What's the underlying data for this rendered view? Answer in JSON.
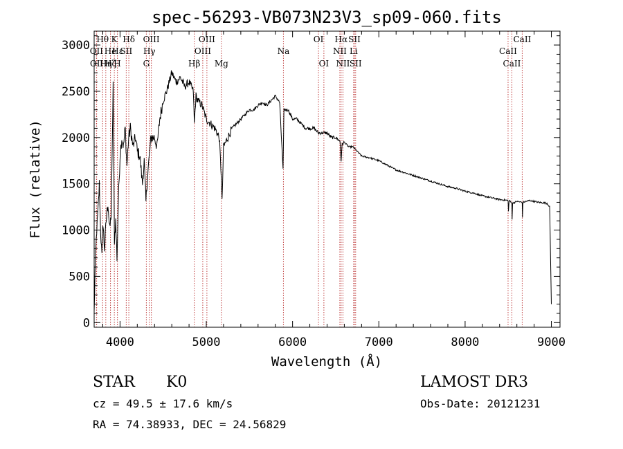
{
  "chart_data": {
    "type": "line",
    "title": "spec-56293-VB073N23V3_sp09-060.fits",
    "xlabel": "Wavelength (Å)",
    "ylabel": "Flux (relative)",
    "xlim": [
      3700,
      9100
    ],
    "ylim": [
      -50,
      3150
    ],
    "xticks": [
      4000,
      5000,
      6000,
      7000,
      8000,
      9000
    ],
    "xtick_labels": [
      "4000",
      "5000",
      "6000",
      "7000",
      "8000",
      "9000"
    ],
    "yticks": [
      0,
      500,
      1000,
      1500,
      2000,
      2500,
      3000
    ],
    "ytick_labels": [
      "0",
      "500",
      "1000",
      "1500",
      "2000",
      "2500",
      "3000"
    ],
    "grid": false,
    "series": [
      {
        "name": "spectrum",
        "anchors": [
          [
            3700,
            100
          ],
          [
            3715,
            700
          ],
          [
            3730,
            1000
          ],
          [
            3745,
            1200
          ],
          [
            3760,
            1500
          ],
          [
            3775,
            1000
          ],
          [
            3790,
            700
          ],
          [
            3800,
            1100
          ],
          [
            3820,
            800
          ],
          [
            3840,
            1100
          ],
          [
            3860,
            1300
          ],
          [
            3880,
            1000
          ],
          [
            3900,
            1200
          ],
          [
            3920,
            2600
          ],
          [
            3935,
            900
          ],
          [
            3950,
            1100
          ],
          [
            3965,
            700
          ],
          [
            3980,
            1300
          ],
          [
            4000,
            1800
          ],
          [
            4020,
            2000
          ],
          [
            4040,
            1900
          ],
          [
            4060,
            2100
          ],
          [
            4080,
            1700
          ],
          [
            4100,
            2000
          ],
          [
            4120,
            2100
          ],
          [
            4150,
            1900
          ],
          [
            4180,
            2000
          ],
          [
            4200,
            1850
          ],
          [
            4230,
            1800
          ],
          [
            4260,
            1500
          ],
          [
            4280,
            1750
          ],
          [
            4300,
            1300
          ],
          [
            4320,
            1600
          ],
          [
            4340,
            1800
          ],
          [
            4360,
            2000
          ],
          [
            4400,
            2000
          ],
          [
            4430,
            1900
          ],
          [
            4460,
            2200
          ],
          [
            4480,
            2300
          ],
          [
            4500,
            2400
          ],
          [
            4540,
            2500
          ],
          [
            4570,
            2600
          ],
          [
            4600,
            2700
          ],
          [
            4650,
            2600
          ],
          [
            4700,
            2650
          ],
          [
            4750,
            2550
          ],
          [
            4800,
            2600
          ],
          [
            4850,
            2500
          ],
          [
            4861,
            2150
          ],
          [
            4880,
            2450
          ],
          [
            4900,
            2400
          ],
          [
            4950,
            2350
          ],
          [
            5000,
            2200
          ],
          [
            5050,
            2150
          ],
          [
            5100,
            2100
          ],
          [
            5150,
            2000
          ],
          [
            5173,
            1600
          ],
          [
            5183,
            1300
          ],
          [
            5200,
            1900
          ],
          [
            5250,
            2000
          ],
          [
            5300,
            2100
          ],
          [
            5350,
            2150
          ],
          [
            5400,
            2200
          ],
          [
            5450,
            2250
          ],
          [
            5500,
            2300
          ],
          [
            5550,
            2300
          ],
          [
            5600,
            2350
          ],
          [
            5650,
            2380
          ],
          [
            5700,
            2350
          ],
          [
            5750,
            2400
          ],
          [
            5800,
            2450
          ],
          [
            5850,
            2380
          ],
          [
            5890,
            1650
          ],
          [
            5900,
            2300
          ],
          [
            5950,
            2300
          ],
          [
            6000,
            2200
          ],
          [
            6050,
            2200
          ],
          [
            6100,
            2150
          ],
          [
            6150,
            2100
          ],
          [
            6200,
            2100
          ],
          [
            6250,
            2100
          ],
          [
            6300,
            2050
          ],
          [
            6350,
            2050
          ],
          [
            6400,
            2050
          ],
          [
            6450,
            2000
          ],
          [
            6500,
            2000
          ],
          [
            6550,
            1960
          ],
          [
            6563,
            1750
          ],
          [
            6575,
            1930
          ],
          [
            6600,
            1950
          ],
          [
            6650,
            1900
          ],
          [
            6700,
            1900
          ],
          [
            6750,
            1850
          ],
          [
            6800,
            1800
          ],
          [
            6900,
            1780
          ],
          [
            7000,
            1750
          ],
          [
            7100,
            1700
          ],
          [
            7200,
            1650
          ],
          [
            7300,
            1620
          ],
          [
            7400,
            1590
          ],
          [
            7500,
            1560
          ],
          [
            7600,
            1530
          ],
          [
            7700,
            1500
          ],
          [
            7800,
            1470
          ],
          [
            7900,
            1450
          ],
          [
            8000,
            1420
          ],
          [
            8100,
            1400
          ],
          [
            8200,
            1370
          ],
          [
            8300,
            1350
          ],
          [
            8400,
            1330
          ],
          [
            8498,
            1320
          ],
          [
            8502,
            1200
          ],
          [
            8510,
            1320
          ],
          [
            8542,
            1290
          ],
          [
            8545,
            1120
          ],
          [
            8550,
            1290
          ],
          [
            8600,
            1310
          ],
          [
            8662,
            1300
          ],
          [
            8665,
            1130
          ],
          [
            8670,
            1300
          ],
          [
            8750,
            1320
          ],
          [
            8850,
            1300
          ],
          [
            8950,
            1290
          ],
          [
            8980,
            1250
          ],
          [
            9000,
            200
          ]
        ]
      }
    ],
    "lines": [
      {
        "label": "Hθ",
        "wl": 3798,
        "row": 1
      },
      {
        "label": "OII",
        "wl": 3727,
        "row": 2
      },
      {
        "label": "OII",
        "wl": 3729,
        "row": 3
      },
      {
        "label": "Hη",
        "wl": 3835,
        "row": 3
      },
      {
        "label": "Hζ",
        "wl": 3889,
        "row": 3
      },
      {
        "label": "He",
        "wl": 3889,
        "row": 2
      },
      {
        "label": "K",
        "wl": 3934,
        "row": 1
      },
      {
        "label": "H",
        "wl": 3969,
        "row": 3
      },
      {
        "label": "SII",
        "wl": 4072,
        "row": 2
      },
      {
        "label": "Hε",
        "wl": 3970,
        "row": 2
      },
      {
        "label": "Hδ",
        "wl": 4102,
        "row": 1
      },
      {
        "label": "OIII",
        "wl": 4363,
        "row": 1
      },
      {
        "label": "Hγ",
        "wl": 4340,
        "row": 2
      },
      {
        "label": "G",
        "wl": 4305,
        "row": 3
      },
      {
        "label": "Hβ",
        "wl": 4861,
        "row": 3
      },
      {
        "label": "OIII",
        "wl": 5007,
        "row": 1
      },
      {
        "label": "OIII",
        "wl": 4959,
        "row": 2
      },
      {
        "label": "Mg",
        "wl": 5175,
        "row": 3
      },
      {
        "label": "Na",
        "wl": 5894,
        "row": 2
      },
      {
        "label": "OI",
        "wl": 6300,
        "row": 1
      },
      {
        "label": "OI",
        "wl": 6363,
        "row": 3
      },
      {
        "label": "Hα",
        "wl": 6563,
        "row": 1
      },
      {
        "label": "NII",
        "wl": 6548,
        "row": 2
      },
      {
        "label": "NII",
        "wl": 6584,
        "row": 3
      },
      {
        "label": "SII",
        "wl": 6717,
        "row": 1
      },
      {
        "label": "Li",
        "wl": 6708,
        "row": 2
      },
      {
        "label": "SII",
        "wl": 6731,
        "row": 3
      },
      {
        "label": "CaII",
        "wl": 8662,
        "row": 1
      },
      {
        "label": "CaII",
        "wl": 8498,
        "row": 2
      },
      {
        "label": "CaII",
        "wl": 8542,
        "row": 3
      }
    ],
    "line_color": "#c04040"
  },
  "info": {
    "object_class": "STAR",
    "subclass": "K0",
    "survey": "LAMOST DR3",
    "cz": "cz = 49.5 ± 17.6 km/s",
    "obs_date": "Obs-Date: 20121231",
    "coords": "RA =  74.38933, DEC =  24.56829"
  }
}
